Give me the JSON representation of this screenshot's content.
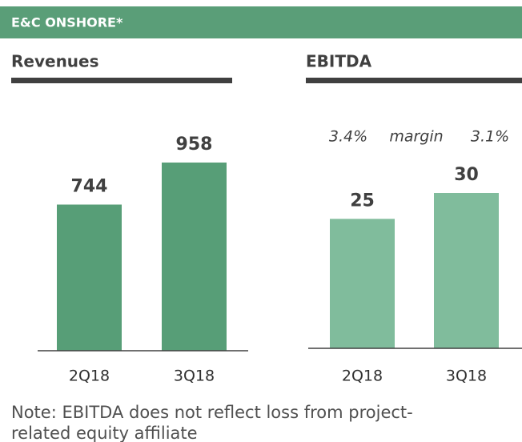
{
  "header": {
    "title": "E&C ONSHORE*"
  },
  "chart_data": [
    {
      "type": "bar",
      "title": "Revenues",
      "categories": [
        "2Q18",
        "3Q18"
      ],
      "values": [
        744,
        958
      ],
      "color": "#579e77"
    },
    {
      "type": "bar",
      "title": "EBITDA",
      "categories": [
        "2Q18",
        "3Q18"
      ],
      "values": [
        25,
        30
      ],
      "color": "#80bc9c",
      "annotation": {
        "label": "margin",
        "values": [
          3.4,
          3.1
        ],
        "value_labels": [
          "3.4%",
          "3.1%"
        ]
      }
    }
  ],
  "note": {
    "lines": [
      "Note: EBITDA does not reflect loss from project-",
      "related equity affiliate"
    ]
  }
}
